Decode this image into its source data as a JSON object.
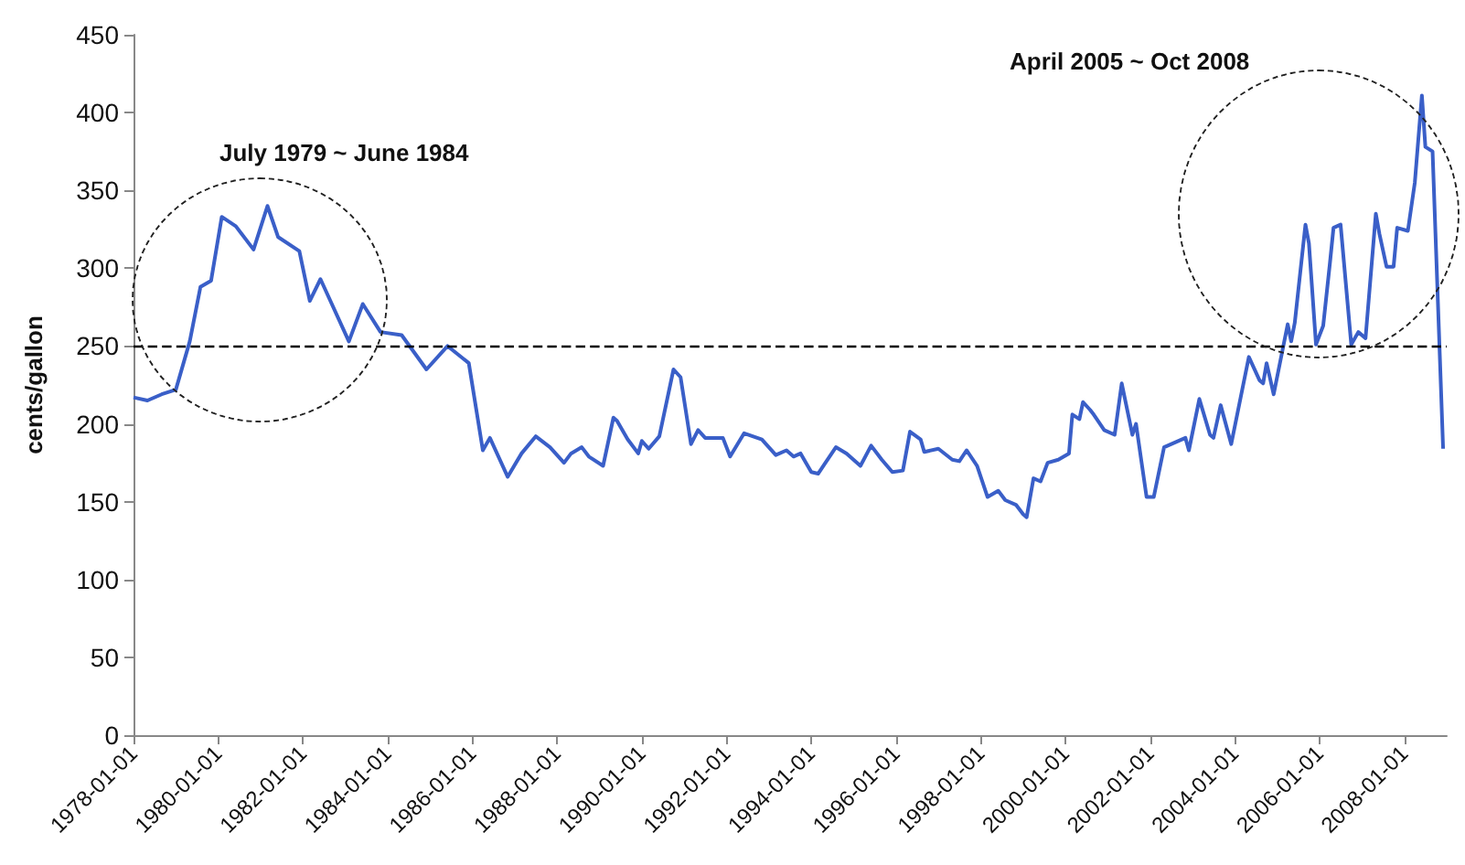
{
  "chart_data": {
    "type": "line",
    "ylabel": "cents/gallon",
    "x": [
      "1978-01",
      "1978-05",
      "1978-09",
      "1979-01",
      "1979-05",
      "1979-08",
      "1979-11",
      "1980-02",
      "1980-06",
      "1980-11",
      "1981-03",
      "1981-06",
      "1981-12",
      "1982-03",
      "1982-06",
      "1983-02",
      "1983-06",
      "1983-11",
      "1984-05",
      "1984-12",
      "1985-06",
      "1985-12",
      "1986-04",
      "1986-06",
      "1986-11",
      "1987-03",
      "1987-07",
      "1987-11",
      "1988-03",
      "1988-05",
      "1988-08",
      "1988-10",
      "1989-02",
      "1989-05",
      "1989-06",
      "1989-09",
      "1989-12",
      "1990-01",
      "1990-03",
      "1990-06",
      "1990-10",
      "1990-12",
      "1991-03",
      "1991-05",
      "1991-07",
      "1991-12",
      "1992-02",
      "1992-06",
      "1992-11",
      "1993-03",
      "1993-06",
      "1993-08",
      "1993-10",
      "1994-01",
      "1994-03",
      "1994-08",
      "1994-11",
      "1995-03",
      "1995-06",
      "1995-09",
      "1995-12",
      "1996-03",
      "1996-05",
      "1996-08",
      "1996-09",
      "1997-01",
      "1997-05",
      "1997-07",
      "1997-09",
      "1997-12",
      "1998-03",
      "1998-06",
      "1998-08",
      "1998-11",
      "1999-01",
      "1999-02",
      "1999-04",
      "1999-06",
      "1999-08",
      "1999-11",
      "2000-02",
      "2000-03",
      "2000-05",
      "2000-06",
      "2000-08",
      "2000-09",
      "2000-12",
      "2001-03",
      "2001-05",
      "2001-08",
      "2001-09",
      "2001-12",
      "2002-02",
      "2002-05",
      "2002-11",
      "2002-12",
      "2003-03",
      "2003-06",
      "2003-07",
      "2003-09",
      "2003-12",
      "2004-05",
      "2004-08",
      "2004-09",
      "2004-10",
      "2004-12",
      "2005-04",
      "2005-05",
      "2005-06",
      "2005-09",
      "2005-10",
      "2005-12",
      "2006-02",
      "2006-04",
      "2006-05",
      "2006-07",
      "2006-10",
      "2006-12",
      "2007-02",
      "2007-05",
      "2007-06",
      "2007-08",
      "2007-10",
      "2007-11",
      "2008-02",
      "2008-04",
      "2008-06",
      "2008-07",
      "2008-09",
      "2008-12"
    ],
    "series": [
      {
        "color": "#3a5fc8",
        "values": [
          217,
          215,
          219,
          222,
          253,
          288,
          292,
          333,
          327,
          312,
          340,
          320,
          311,
          279,
          293,
          253,
          277,
          259,
          257,
          235,
          250,
          239,
          183,
          191,
          166,
          181,
          192,
          185,
          175,
          181,
          185,
          179,
          173,
          204,
          202,
          190,
          181,
          189,
          184,
          192,
          235,
          230,
          187,
          196,
          191,
          191,
          179,
          194,
          190,
          180,
          183,
          179,
          181,
          169,
          168,
          185,
          181,
          173,
          186,
          177,
          169,
          170,
          195,
          190,
          182,
          184,
          177,
          176,
          183,
          173,
          153,
          157,
          151,
          148,
          142,
          140,
          165,
          163,
          175,
          177,
          181,
          206,
          203,
          214,
          209,
          206,
          196,
          193,
          226,
          193,
          200,
          153,
          153,
          185,
          191,
          183,
          216,
          193,
          191,
          212,
          187,
          243,
          228,
          226,
          239,
          219,
          264,
          253,
          265,
          328,
          316,
          251,
          263,
          304,
          326,
          328,
          251,
          259,
          255,
          335,
          322,
          301,
          301,
          326,
          324,
          355,
          411,
          378,
          375,
          184
        ]
      }
    ],
    "xlim": [
      "1978-01-01",
      "2009-01-01"
    ],
    "xticks": [
      "1978-01-01",
      "1980-01-01",
      "1982-01-01",
      "1984-01-01",
      "1986-01-01",
      "1988-01-01",
      "1990-01-01",
      "1992-01-01",
      "1994-01-01",
      "1996-01-01",
      "1998-01-01",
      "2000-01-01",
      "2002-01-01",
      "2004-01-01",
      "2006-01-01",
      "2008-01-01"
    ],
    "ylim": [
      0,
      450
    ],
    "yticks": [
      0,
      50,
      100,
      150,
      200,
      250,
      300,
      350,
      400,
      450
    ],
    "grid": false,
    "marker": "none",
    "line_style": "solid",
    "ref_lines": [
      {
        "axis": "y",
        "value": 250,
        "color": "#000000",
        "line_style": "dashed"
      }
    ],
    "annotations": [
      "July 1979 ~ June 1984",
      "April 2005 ~ Oct 2008"
    ]
  }
}
